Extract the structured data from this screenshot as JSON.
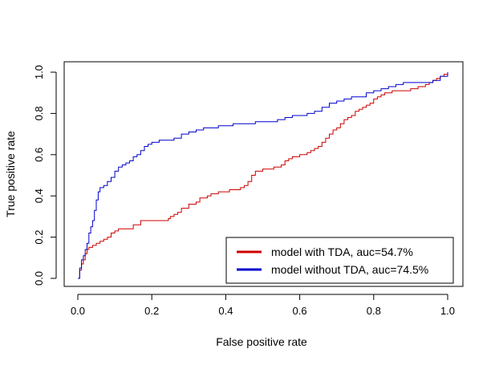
{
  "chart_data": {
    "type": "line",
    "title": "",
    "xlabel": "False positive rate",
    "ylabel": "True positive rate",
    "xlim": [
      0,
      1
    ],
    "ylim": [
      0,
      1
    ],
    "xticks": [
      "0.0",
      "0.2",
      "0.4",
      "0.6",
      "0.8",
      "1.0"
    ],
    "yticks": [
      "0.0",
      "0.2",
      "0.4",
      "0.6",
      "0.8",
      "1.0"
    ],
    "grid": false,
    "legend_position": "bottom-right",
    "series": [
      {
        "name": "model with TDA, auc=54.7%",
        "color": "#cc0000",
        "x": [
          0,
          0.005,
          0.01,
          0.015,
          0.02,
          0.025,
          0.03,
          0.04,
          0.05,
          0.06,
          0.07,
          0.08,
          0.09,
          0.1,
          0.11,
          0.13,
          0.15,
          0.17,
          0.2,
          0.24,
          0.245,
          0.25,
          0.26,
          0.27,
          0.28,
          0.29,
          0.3,
          0.32,
          0.33,
          0.35,
          0.36,
          0.38,
          0.41,
          0.42,
          0.44,
          0.45,
          0.46,
          0.47,
          0.48,
          0.5,
          0.51,
          0.53,
          0.54,
          0.55,
          0.56,
          0.57,
          0.58,
          0.6,
          0.61,
          0.62,
          0.63,
          0.64,
          0.65,
          0.66,
          0.67,
          0.68,
          0.69,
          0.7,
          0.71,
          0.72,
          0.73,
          0.74,
          0.75,
          0.76,
          0.77,
          0.78,
          0.79,
          0.8,
          0.81,
          0.82,
          0.83,
          0.84,
          0.85,
          0.86,
          0.88,
          0.9,
          0.92,
          0.94,
          0.95,
          0.96,
          0.97,
          0.98,
          0.99,
          1.0
        ],
        "y": [
          0,
          0.04,
          0.07,
          0.09,
          0.12,
          0.14,
          0.15,
          0.16,
          0.17,
          0.18,
          0.19,
          0.2,
          0.22,
          0.23,
          0.24,
          0.24,
          0.26,
          0.28,
          0.28,
          0.28,
          0.29,
          0.3,
          0.31,
          0.32,
          0.34,
          0.34,
          0.36,
          0.37,
          0.39,
          0.4,
          0.41,
          0.42,
          0.43,
          0.43,
          0.44,
          0.45,
          0.47,
          0.5,
          0.52,
          0.53,
          0.53,
          0.54,
          0.54,
          0.55,
          0.57,
          0.58,
          0.59,
          0.6,
          0.6,
          0.61,
          0.62,
          0.63,
          0.64,
          0.66,
          0.68,
          0.7,
          0.72,
          0.73,
          0.75,
          0.77,
          0.78,
          0.79,
          0.81,
          0.82,
          0.83,
          0.84,
          0.85,
          0.87,
          0.88,
          0.89,
          0.9,
          0.9,
          0.91,
          0.91,
          0.91,
          0.92,
          0.93,
          0.94,
          0.95,
          0.96,
          0.97,
          0.98,
          0.99,
          1.0
        ]
      },
      {
        "name": "model without TDA, auc=74.5%",
        "color": "#0000cc",
        "x": [
          0,
          0.005,
          0.01,
          0.015,
          0.02,
          0.025,
          0.03,
          0.035,
          0.04,
          0.045,
          0.05,
          0.055,
          0.06,
          0.065,
          0.07,
          0.08,
          0.09,
          0.1,
          0.11,
          0.12,
          0.13,
          0.14,
          0.15,
          0.16,
          0.17,
          0.18,
          0.19,
          0.2,
          0.21,
          0.22,
          0.24,
          0.26,
          0.28,
          0.3,
          0.32,
          0.34,
          0.36,
          0.38,
          0.4,
          0.42,
          0.45,
          0.48,
          0.5,
          0.52,
          0.54,
          0.56,
          0.58,
          0.6,
          0.62,
          0.64,
          0.66,
          0.68,
          0.7,
          0.72,
          0.74,
          0.76,
          0.78,
          0.8,
          0.82,
          0.84,
          0.86,
          0.88,
          0.9,
          0.92,
          0.94,
          0.96,
          0.98,
          1.0
        ],
        "y": [
          0,
          0.05,
          0.09,
          0.11,
          0.14,
          0.17,
          0.22,
          0.25,
          0.28,
          0.33,
          0.38,
          0.42,
          0.44,
          0.44,
          0.45,
          0.47,
          0.49,
          0.52,
          0.54,
          0.55,
          0.56,
          0.57,
          0.59,
          0.6,
          0.62,
          0.64,
          0.65,
          0.66,
          0.66,
          0.67,
          0.67,
          0.68,
          0.7,
          0.71,
          0.72,
          0.73,
          0.73,
          0.74,
          0.74,
          0.75,
          0.75,
          0.76,
          0.76,
          0.76,
          0.77,
          0.78,
          0.79,
          0.79,
          0.8,
          0.81,
          0.83,
          0.85,
          0.86,
          0.87,
          0.88,
          0.88,
          0.9,
          0.91,
          0.92,
          0.93,
          0.94,
          0.95,
          0.95,
          0.95,
          0.95,
          0.96,
          0.98,
          1.0
        ]
      }
    ]
  }
}
